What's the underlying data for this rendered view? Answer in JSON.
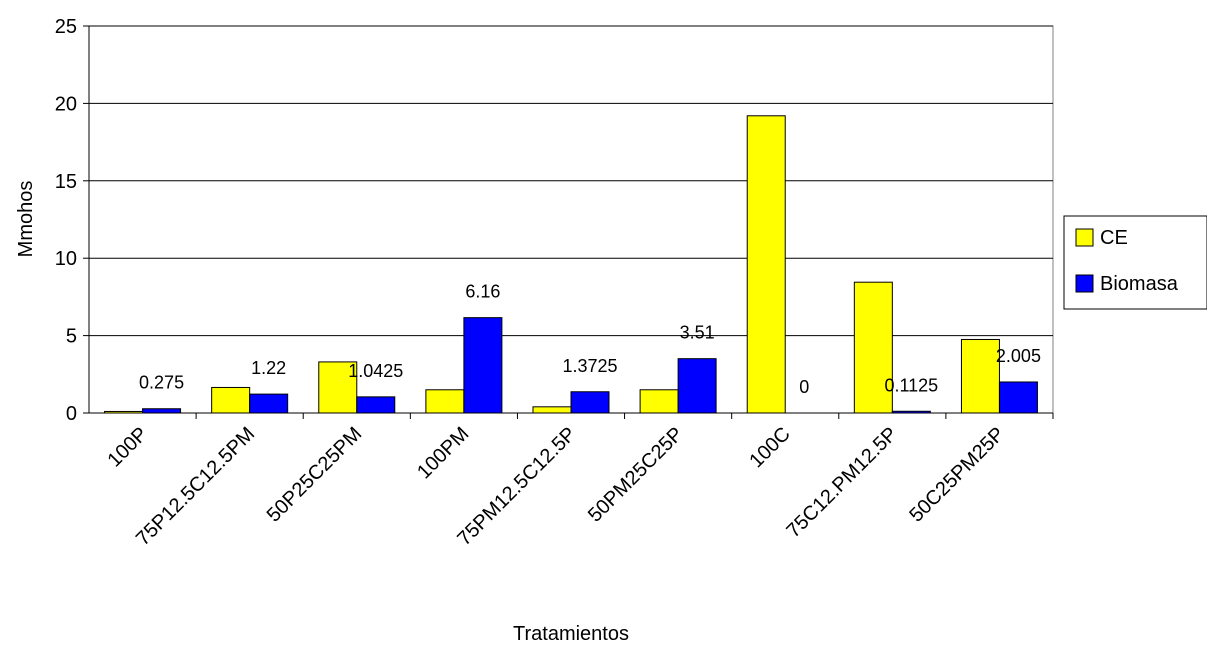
{
  "chart_data": {
    "type": "bar",
    "title": "",
    "xlabel": "Tratamientos",
    "ylabel": "Mmohos",
    "ylim": [
      0,
      25
    ],
    "yticks": [
      0,
      5,
      10,
      15,
      20,
      25
    ],
    "grid": true,
    "legend_position": "right",
    "categories": [
      "100P",
      "75P12.5C12.5PM",
      "50P25C25PM",
      "100PM",
      "75PM12.5C12.5P",
      "50PM25C25P",
      "100C",
      "75C12.PM12.5P",
      "50C25PM25P"
    ],
    "series": [
      {
        "name": "CE",
        "color": "#ffff00",
        "values": [
          0.1,
          1.65,
          3.3,
          1.5,
          0.4,
          1.5,
          19.2,
          8.45,
          4.75
        ],
        "labels": [
          "",
          "",
          "",
          "",
          "",
          "",
          "",
          "",
          ""
        ]
      },
      {
        "name": "Biomasa",
        "color": "#0000ff",
        "values": [
          0.275,
          1.22,
          1.0425,
          6.16,
          1.3725,
          3.51,
          0,
          0.1125,
          2.005
        ],
        "labels": [
          "0.275",
          "1.22",
          "1.0425",
          "6.16",
          "1.3725",
          "3.51",
          "0",
          "0.1125",
          "2.005"
        ]
      }
    ]
  }
}
